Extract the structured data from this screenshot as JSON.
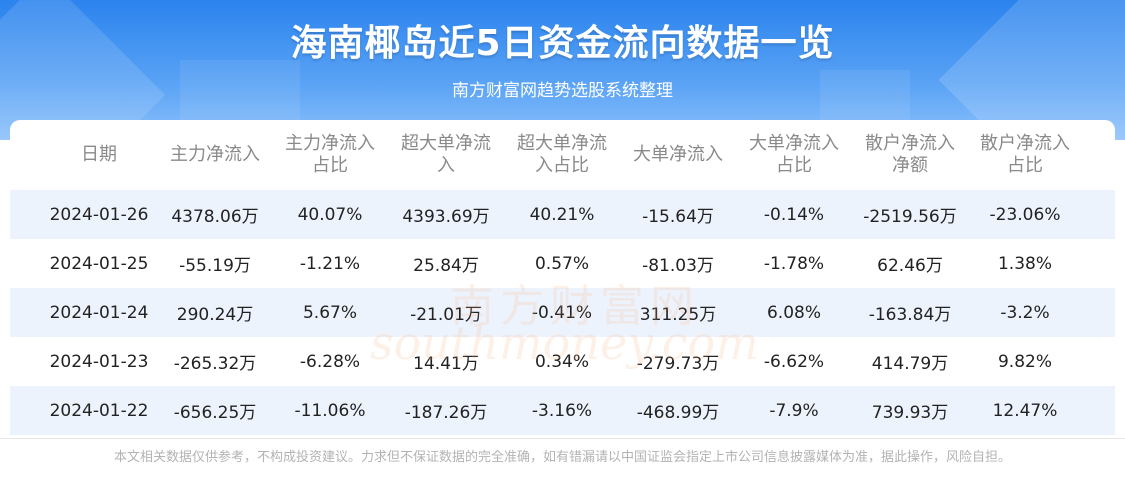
{
  "header": {
    "title": "海南椰岛近5日资金流向数据一览",
    "subtitle": "南方财富网趋势选股系统整理"
  },
  "table": {
    "columns": [
      [
        "日期"
      ],
      [
        "主力净流入"
      ],
      [
        "主力净流入",
        "占比"
      ],
      [
        "超大单净流",
        "入"
      ],
      [
        "超大单净流",
        "入占比"
      ],
      [
        "大单净流入"
      ],
      [
        "大单净流入",
        "占比"
      ],
      [
        "散户净流入",
        "净额"
      ],
      [
        "散户净流入",
        "占比"
      ]
    ],
    "rows": [
      [
        "2024-01-26",
        "4378.06万",
        "40.07%",
        "4393.69万",
        "40.21%",
        "-15.64万",
        "-0.14%",
        "-2519.56万",
        "-23.06%"
      ],
      [
        "2024-01-25",
        "-55.19万",
        "-1.21%",
        "25.84万",
        "0.57%",
        "-81.03万",
        "-1.78%",
        "62.46万",
        "1.38%"
      ],
      [
        "2024-01-24",
        "290.24万",
        "5.67%",
        "-21.01万",
        "-0.41%",
        "311.25万",
        "6.08%",
        "-163.84万",
        "-3.2%"
      ],
      [
        "2024-01-23",
        "-265.32万",
        "-6.28%",
        "14.41万",
        "0.34%",
        "-279.73万",
        "-6.62%",
        "414.79万",
        "9.82%"
      ],
      [
        "2024-01-22",
        "-656.25万",
        "-11.06%",
        "-187.26万",
        "-3.16%",
        "-468.99万",
        "-7.9%",
        "739.93万",
        "12.47%"
      ]
    ]
  },
  "watermark": {
    "cn": "南方财富网",
    "en": "southmoney.com"
  },
  "footer": {
    "disclaimer": "本文相关数据仅供参考，不构成投资建议。力求但不保证数据的完全准确，如有错漏请以中国证监会指定上市公司信息披露媒体为准，据此操作，风险自担。"
  },
  "colors": {
    "banner": "#2b83ee",
    "row_alt": "#edf3fd",
    "header_text": "#8a8a8a"
  }
}
